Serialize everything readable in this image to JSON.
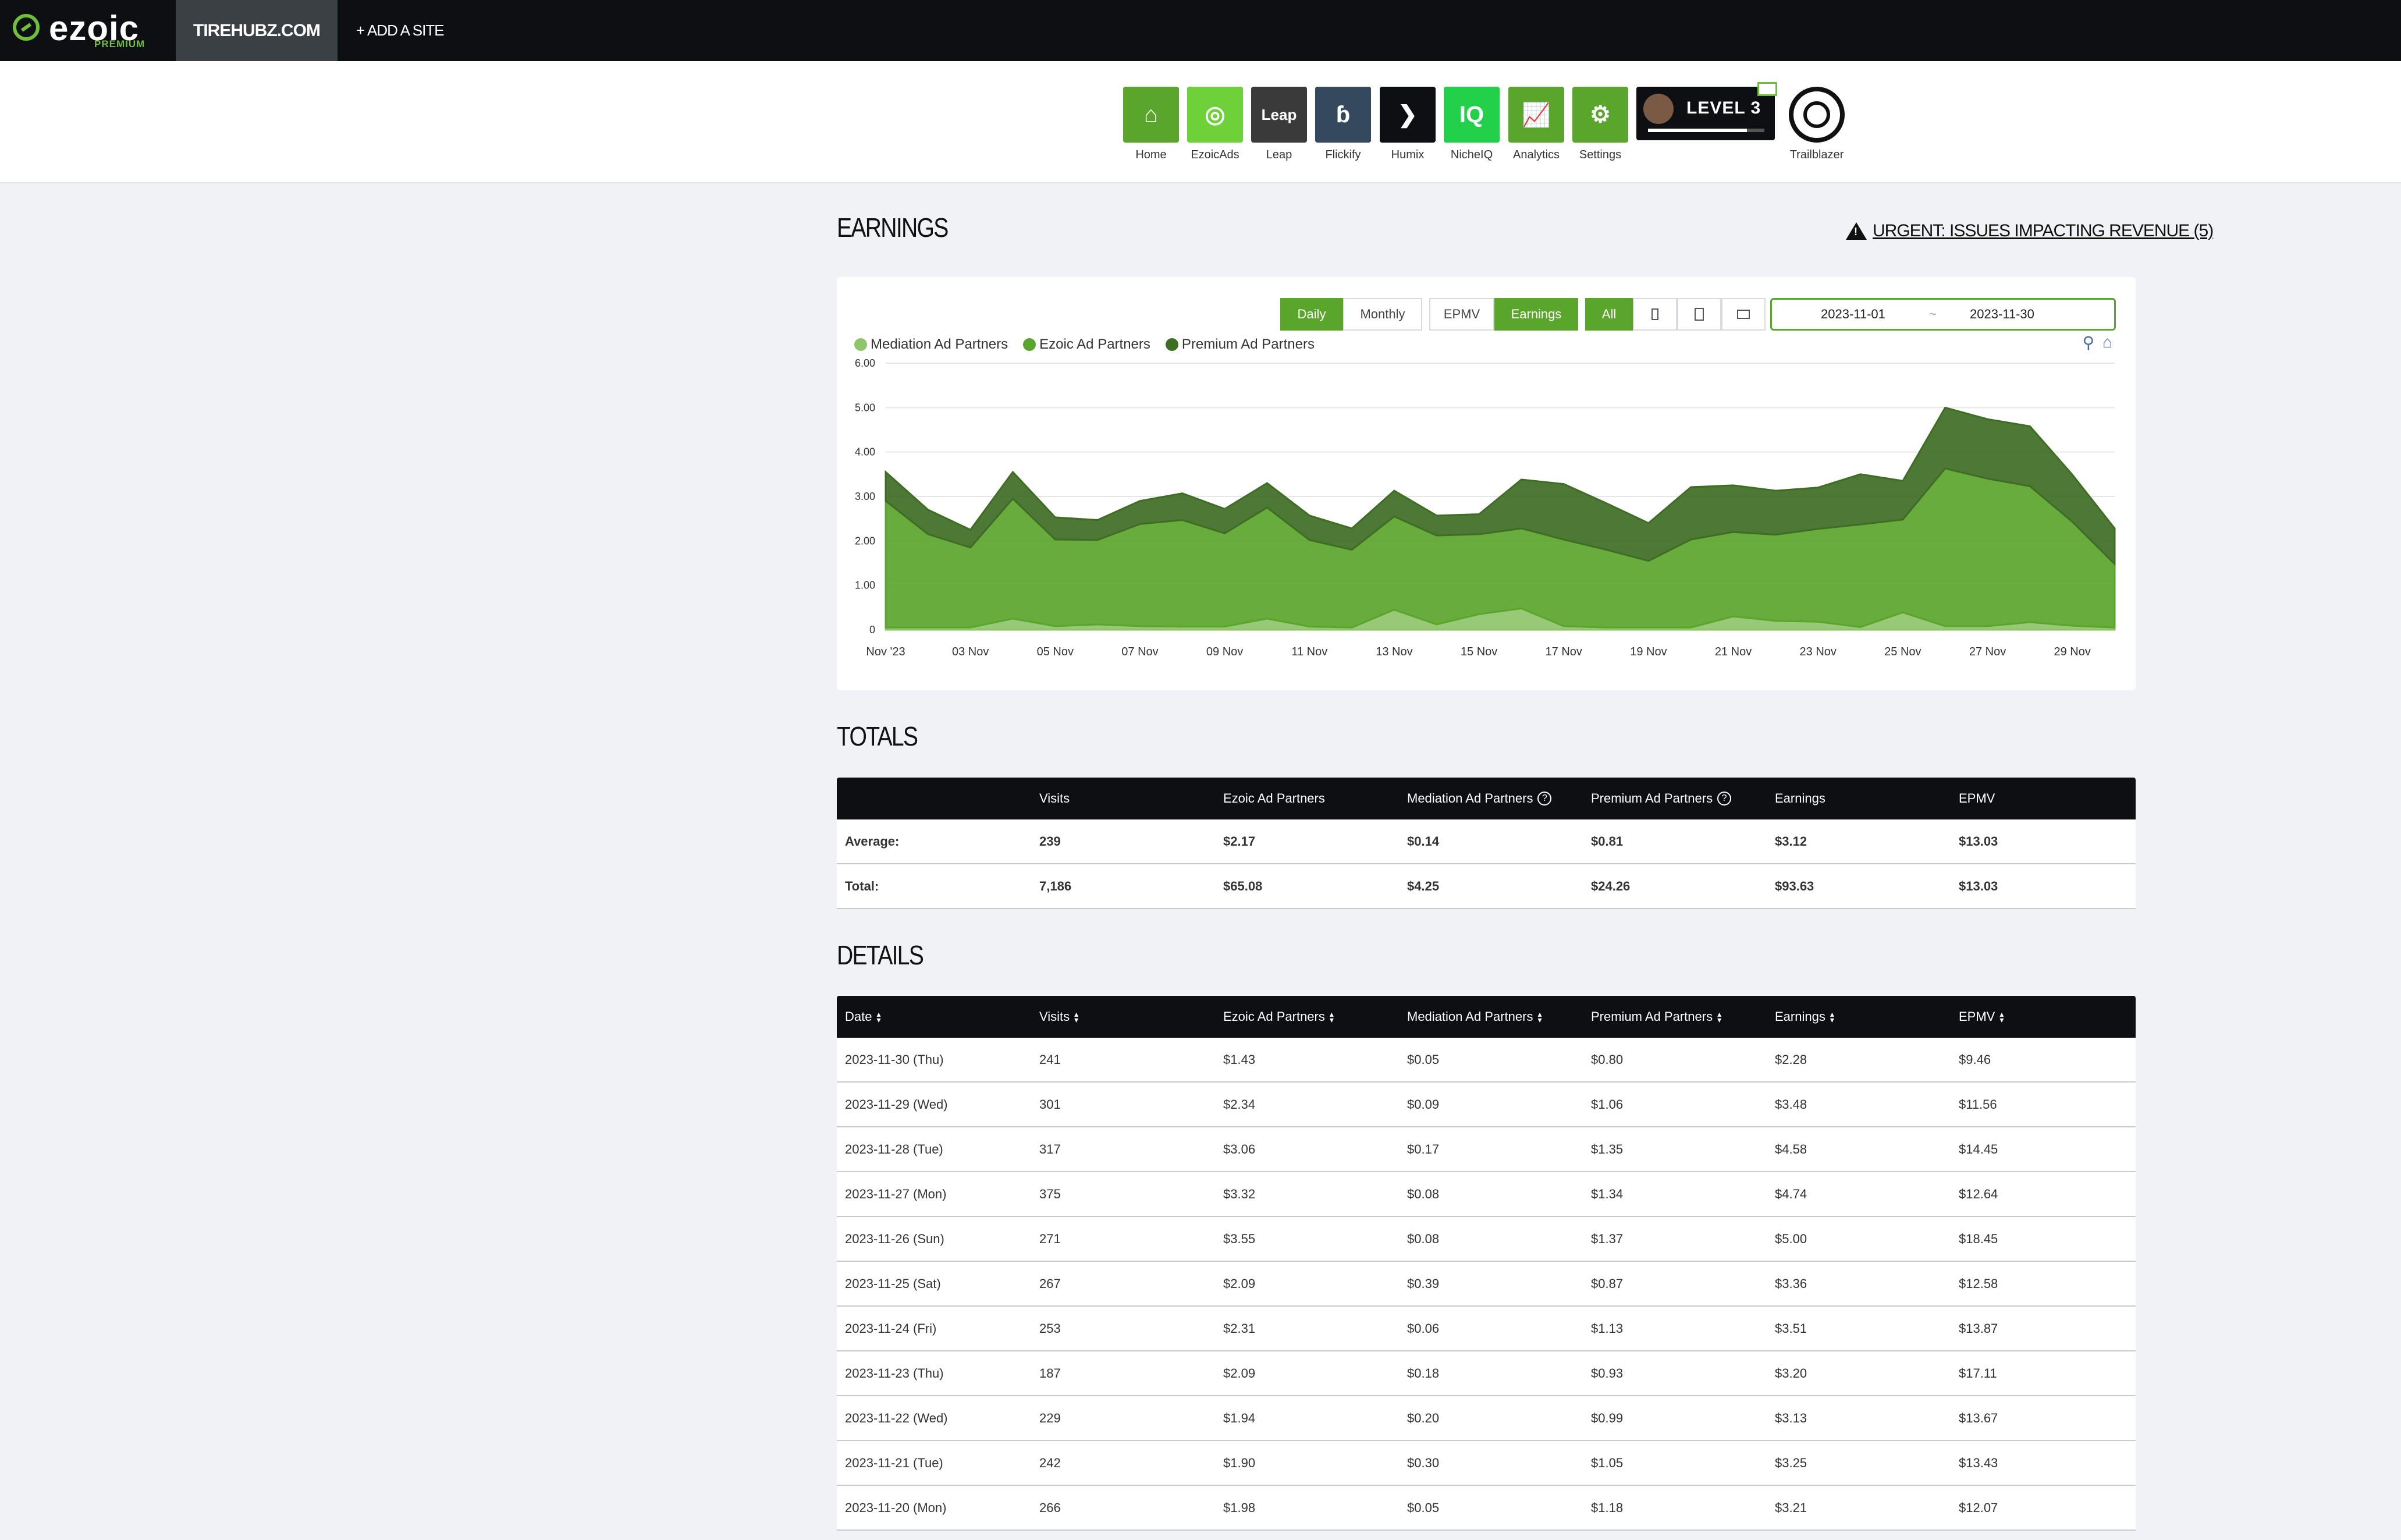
{
  "topbar": {
    "logo_text": "ezoic",
    "logo_sub": "PREMIUM",
    "site": "TIREHUBZ.COM",
    "add_site": "+ ADD A SITE"
  },
  "apps": [
    {
      "label": "Home",
      "icon": "home-icon",
      "glyph": "⌂",
      "color": "#5aa52c"
    },
    {
      "label": "EzoicAds",
      "icon": "ezoicads-icon",
      "glyph": "◎",
      "color": "#6fd13a"
    },
    {
      "label": "Leap",
      "icon": "leap-icon",
      "glyph": "Leap",
      "color": "#3a3a3a"
    },
    {
      "label": "Flickify",
      "icon": "flickify-icon",
      "glyph": "ɓ",
      "color": "#34495e"
    },
    {
      "label": "Humix",
      "icon": "humix-icon",
      "glyph": "❯",
      "color": "#0d0f12"
    },
    {
      "label": "NicheIQ",
      "icon": "nicheiq-icon",
      "glyph": "IQ",
      "color": "#22d04a"
    },
    {
      "label": "Analytics",
      "icon": "analytics-icon",
      "glyph": "📈",
      "color": "#5aa52c"
    },
    {
      "label": "Settings",
      "icon": "settings-icon",
      "glyph": "⚙",
      "color": "#5aa52c"
    }
  ],
  "level": {
    "text": "LEVEL 3",
    "progress": 0.85
  },
  "trailblazer_label": "Trailblazer",
  "earnings_title": "EARNINGS",
  "alert_text": "URGENT: ISSUES IMPACTING REVENUE (5)",
  "toggles": {
    "period": [
      "Daily",
      "Monthly"
    ],
    "period_selected": "Daily",
    "metric": [
      "EPMV",
      "Earnings"
    ],
    "metric_selected": "Earnings",
    "device_all": "All"
  },
  "date_range": {
    "start": "2023-11-01",
    "separator": "~",
    "end": "2023-11-30"
  },
  "chart_data": {
    "type": "area",
    "stacked": true,
    "ylim": [
      0,
      6
    ],
    "y_ticks": [
      "0",
      "1.00",
      "2.00",
      "3.00",
      "4.00",
      "5.00",
      "6.00"
    ],
    "x": [
      "Nov '23",
      "02 Nov",
      "03 Nov",
      "04 Nov",
      "05 Nov",
      "06 Nov",
      "07 Nov",
      "08 Nov",
      "09 Nov",
      "10 Nov",
      "11 Nov",
      "12 Nov",
      "13 Nov",
      "14 Nov",
      "15 Nov",
      "16 Nov",
      "17 Nov",
      "18 Nov",
      "19 Nov",
      "20 Nov",
      "21 Nov",
      "22 Nov",
      "23 Nov",
      "24 Nov",
      "25 Nov",
      "26 Nov",
      "27 Nov",
      "28 Nov",
      "29 Nov",
      "30 Nov"
    ],
    "x_tick_labels": [
      "Nov '23",
      "03 Nov",
      "05 Nov",
      "07 Nov",
      "09 Nov",
      "11 Nov",
      "13 Nov",
      "15 Nov",
      "17 Nov",
      "19 Nov",
      "21 Nov",
      "23 Nov",
      "25 Nov",
      "27 Nov",
      "29 Nov"
    ],
    "series": [
      {
        "name": "Mediation Ad Partners",
        "color": "#8fc46a",
        "values": [
          0.05,
          0.05,
          0.05,
          0.25,
          0.08,
          0.12,
          0.08,
          0.07,
          0.07,
          0.25,
          0.07,
          0.05,
          0.45,
          0.12,
          0.35,
          0.48,
          0.08,
          0.05,
          0.05,
          0.05,
          0.3,
          0.2,
          0.18,
          0.06,
          0.39,
          0.08,
          0.08,
          0.17,
          0.09,
          0.05
        ]
      },
      {
        "name": "Ezoic Ad Partners",
        "color": "#5aa52c",
        "values": [
          2.85,
          2.1,
          1.8,
          2.7,
          1.95,
          1.9,
          2.3,
          2.4,
          2.1,
          2.5,
          1.95,
          1.75,
          2.1,
          2.0,
          1.8,
          1.8,
          1.95,
          1.75,
          1.5,
          1.98,
          1.9,
          1.94,
          2.09,
          2.31,
          2.09,
          3.55,
          3.32,
          3.06,
          2.34,
          1.43
        ]
      },
      {
        "name": "Premium Ad Partners",
        "color": "#3f6d24",
        "values": [
          0.65,
          0.55,
          0.4,
          0.6,
          0.5,
          0.45,
          0.52,
          0.6,
          0.55,
          0.55,
          0.55,
          0.48,
          0.58,
          0.45,
          0.45,
          1.1,
          1.25,
          1.05,
          0.85,
          1.18,
          1.05,
          0.99,
          0.93,
          1.13,
          0.87,
          1.37,
          1.34,
          1.35,
          1.06,
          0.8
        ]
      }
    ]
  },
  "totals_title": "TOTALS",
  "totals": {
    "headers": [
      "",
      "Visits",
      "Ezoic Ad Partners",
      "Mediation Ad Partners",
      "Premium Ad Partners",
      "Earnings",
      "EPMV"
    ],
    "help_cols": [
      3,
      4
    ],
    "rows": [
      [
        "Average:",
        "239",
        "$2.17",
        "$0.14",
        "$0.81",
        "$3.12",
        "$13.03"
      ],
      [
        "Total:",
        "7,186",
        "$65.08",
        "$4.25",
        "$24.26",
        "$93.63",
        "$13.03"
      ]
    ]
  },
  "details_title": "DETAILS",
  "details": {
    "headers": [
      "Date",
      "Visits",
      "Ezoic Ad Partners",
      "Mediation Ad Partners",
      "Premium Ad Partners",
      "Earnings",
      "EPMV"
    ],
    "rows": [
      [
        "2023-11-30 (Thu)",
        "241",
        "$1.43",
        "$0.05",
        "$0.80",
        "$2.28",
        "$9.46"
      ],
      [
        "2023-11-29 (Wed)",
        "301",
        "$2.34",
        "$0.09",
        "$1.06",
        "$3.48",
        "$11.56"
      ],
      [
        "2023-11-28 (Tue)",
        "317",
        "$3.06",
        "$0.17",
        "$1.35",
        "$4.58",
        "$14.45"
      ],
      [
        "2023-11-27 (Mon)",
        "375",
        "$3.32",
        "$0.08",
        "$1.34",
        "$4.74",
        "$12.64"
      ],
      [
        "2023-11-26 (Sun)",
        "271",
        "$3.55",
        "$0.08",
        "$1.37",
        "$5.00",
        "$18.45"
      ],
      [
        "2023-11-25 (Sat)",
        "267",
        "$2.09",
        "$0.39",
        "$0.87",
        "$3.36",
        "$12.58"
      ],
      [
        "2023-11-24 (Fri)",
        "253",
        "$2.31",
        "$0.06",
        "$1.13",
        "$3.51",
        "$13.87"
      ],
      [
        "2023-11-23 (Thu)",
        "187",
        "$2.09",
        "$0.18",
        "$0.93",
        "$3.20",
        "$17.11"
      ],
      [
        "2023-11-22 (Wed)",
        "229",
        "$1.94",
        "$0.20",
        "$0.99",
        "$3.13",
        "$13.67"
      ],
      [
        "2023-11-21 (Tue)",
        "242",
        "$1.90",
        "$0.30",
        "$1.05",
        "$3.25",
        "$13.43"
      ],
      [
        "2023-11-20 (Mon)",
        "266",
        "$1.98",
        "$0.05",
        "$1.18",
        "$3.21",
        "$12.07"
      ]
    ]
  }
}
